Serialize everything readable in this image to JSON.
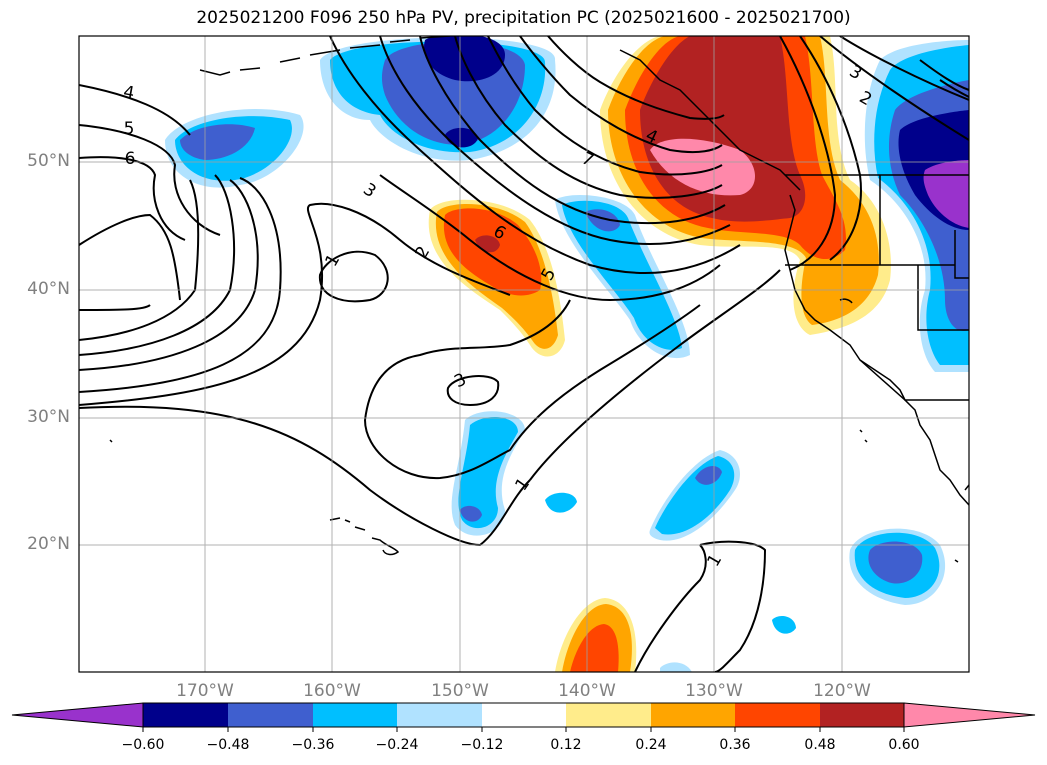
{
  "title": "2025021200 F096 250 hPa PV, precipitation PC (2025021600 - 2025021700)",
  "lat_labels": [
    "50°N",
    "40°N",
    "30°N",
    "20°N"
  ],
  "lon_labels": [
    "170°W",
    "160°W",
    "150°W",
    "140°W",
    "130°W",
    "120°W"
  ],
  "pv_contour_labels": [
    "4",
    "5",
    "6",
    "3",
    "1",
    "2",
    "6",
    "5",
    "3",
    "1",
    "7",
    "4",
    "3",
    "2",
    "1"
  ],
  "colorbar": {
    "ticks": [
      "−0.60",
      "−0.48",
      "−0.36",
      "−0.24",
      "−0.12",
      "0.12",
      "0.24",
      "0.36",
      "0.48",
      "0.60"
    ],
    "colors": [
      "#9932cc",
      "#00008b",
      "#3f5fcf",
      "#00bfff",
      "#b0e2ff",
      "#ffffff",
      "#ffec8b",
      "#ffa500",
      "#ff4500",
      "#b22222",
      "#ff88aa"
    ]
  }
}
